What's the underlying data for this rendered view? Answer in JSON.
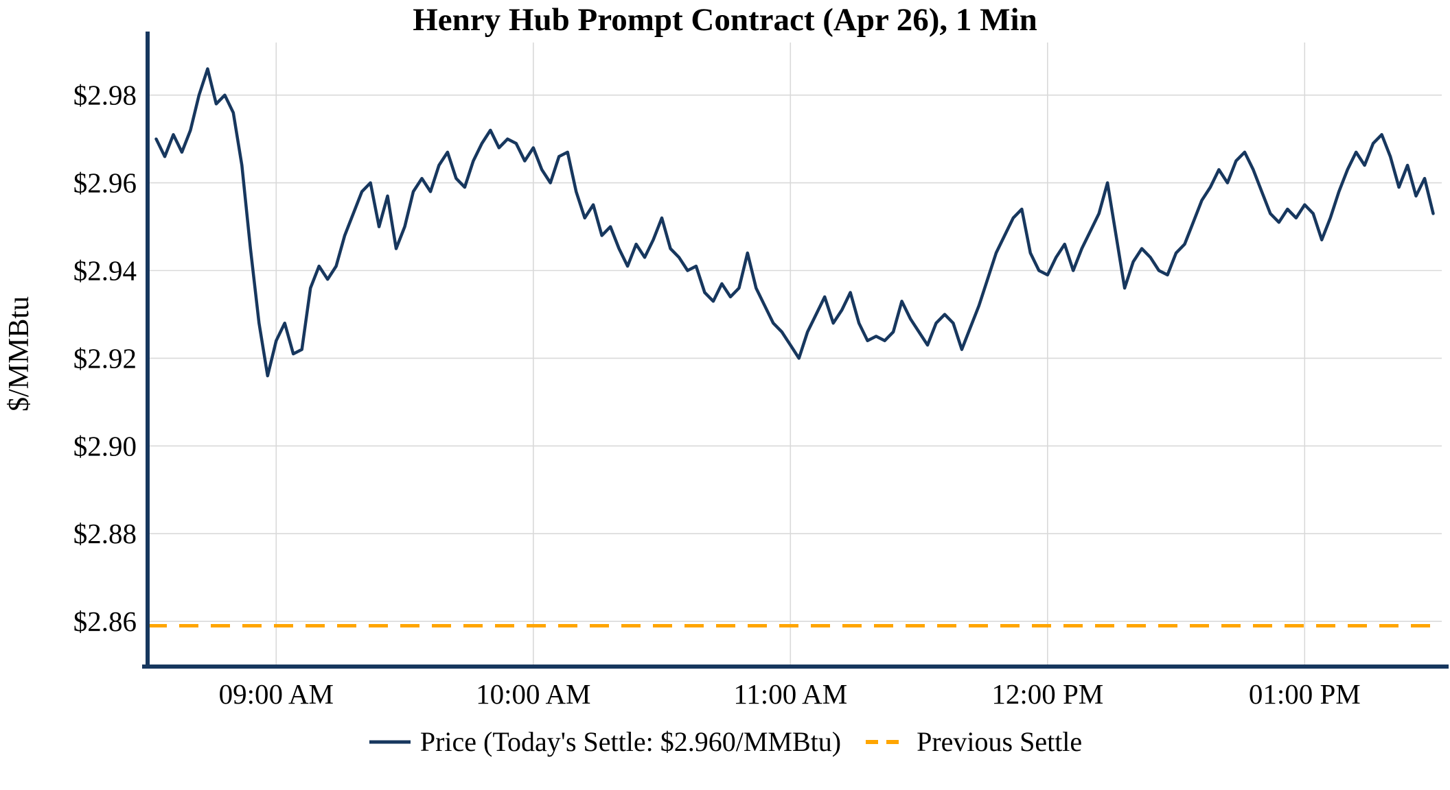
{
  "title": "Henry Hub Prompt Contract (Apr 26), 1 Min",
  "ylabel": "$/MMBtu",
  "legend": {
    "price_label": "Price (Today's Settle: $2.960/MMBtu)",
    "previous_settle_label": "Previous Settle"
  },
  "colors": {
    "price": "#17375e",
    "previous_settle": "#FFA500",
    "grid": "#d9d9d9",
    "axis": "#17375e",
    "text": "#000000",
    "background": "#ffffff"
  },
  "chart_data": {
    "type": "line",
    "title": "Henry Hub Prompt Contract (Apr 26), 1 Min",
    "xlabel": "",
    "ylabel": "$/MMBtu",
    "grid": true,
    "legend_position": "bottom",
    "x_unit": "minutes_since_midnight",
    "x_start": 512,
    "x_step": 2,
    "xlim": [
      510,
      812
    ],
    "ylim": [
      2.85,
      2.992
    ],
    "x_ticks": [
      {
        "value": 540,
        "label": "09:00 AM"
      },
      {
        "value": 600,
        "label": "10:00 AM"
      },
      {
        "value": 660,
        "label": "11:00 AM"
      },
      {
        "value": 720,
        "label": "12:00 PM"
      },
      {
        "value": 780,
        "label": "01:00 PM"
      }
    ],
    "y_ticks": [
      {
        "value": 2.86,
        "label": "$2.86"
      },
      {
        "value": 2.88,
        "label": "$2.88"
      },
      {
        "value": 2.9,
        "label": "$2.90"
      },
      {
        "value": 2.92,
        "label": "$2.92"
      },
      {
        "value": 2.94,
        "label": "$2.94"
      },
      {
        "value": 2.96,
        "label": "$2.96"
      },
      {
        "value": 2.98,
        "label": "$2.98"
      }
    ],
    "today_settle": 2.96,
    "previous_settle": 2.859,
    "series": [
      {
        "name": "Price (Today's Settle: $2.960/MMBtu)",
        "type": "line",
        "style": "solid",
        "color": "#17375e",
        "values": [
          2.97,
          2.966,
          2.971,
          2.967,
          2.972,
          2.98,
          2.986,
          2.978,
          2.98,
          2.976,
          2.964,
          2.945,
          2.928,
          2.916,
          2.924,
          2.928,
          2.921,
          2.922,
          2.936,
          2.941,
          2.938,
          2.941,
          2.948,
          2.953,
          2.958,
          2.96,
          2.95,
          2.957,
          2.945,
          2.95,
          2.958,
          2.961,
          2.958,
          2.964,
          2.967,
          2.961,
          2.959,
          2.965,
          2.969,
          2.972,
          2.968,
          2.97,
          2.969,
          2.965,
          2.968,
          2.963,
          2.96,
          2.966,
          2.967,
          2.958,
          2.952,
          2.955,
          2.948,
          2.95,
          2.945,
          2.941,
          2.946,
          2.943,
          2.947,
          2.952,
          2.945,
          2.943,
          2.94,
          2.941,
          2.935,
          2.933,
          2.937,
          2.934,
          2.936,
          2.944,
          2.936,
          2.932,
          2.928,
          2.926,
          2.923,
          2.92,
          2.926,
          2.93,
          2.934,
          2.928,
          2.931,
          2.935,
          2.928,
          2.924,
          2.925,
          2.924,
          2.926,
          2.933,
          2.929,
          2.926,
          2.923,
          2.928,
          2.93,
          2.928,
          2.922,
          2.927,
          2.932,
          2.938,
          2.944,
          2.948,
          2.952,
          2.954,
          2.944,
          2.94,
          2.939,
          2.943,
          2.946,
          2.94,
          2.945,
          2.949,
          2.953,
          2.96,
          2.948,
          2.936,
          2.942,
          2.945,
          2.943,
          2.94,
          2.939,
          2.944,
          2.946,
          2.951,
          2.956,
          2.959,
          2.963,
          2.96,
          2.965,
          2.967,
          2.963,
          2.958,
          2.953,
          2.951,
          2.954,
          2.952,
          2.955,
          2.953,
          2.947,
          2.952,
          2.958,
          2.963,
          2.967,
          2.964,
          2.969,
          2.971,
          2.966,
          2.959,
          2.964,
          2.957,
          2.961,
          2.953
        ]
      },
      {
        "name": "Previous Settle",
        "type": "hline",
        "style": "dashed",
        "color": "#FFA500",
        "value": 2.859
      }
    ]
  }
}
